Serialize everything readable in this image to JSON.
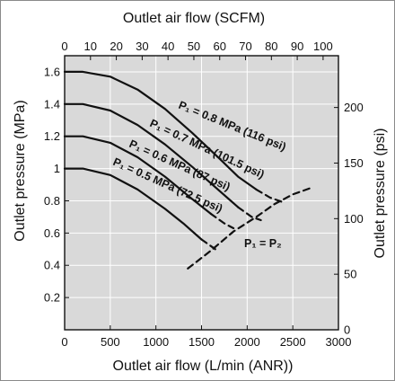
{
  "chart_data": {
    "type": "line",
    "top_axis": {
      "label": "Outlet air flow (SCFM)",
      "ticks": [
        "0",
        "10",
        "20",
        "30",
        "40",
        "50",
        "60",
        "70",
        "80",
        "90",
        "100"
      ],
      "range": [
        0,
        105.94
      ]
    },
    "x_axis": {
      "label": "Outlet air flow (L/min (ANR))",
      "ticks": [
        "0",
        "500",
        "1000",
        "1500",
        "2000",
        "2500",
        "3000"
      ],
      "range": [
        0,
        3000
      ]
    },
    "y_axis": {
      "label": "Outlet pressure (MPa)",
      "ticks": [
        "0.2",
        "0.4",
        "0.6",
        "0.8",
        "1",
        "1.2",
        "1.4",
        "1.6"
      ],
      "range": [
        0,
        1.7
      ]
    },
    "y2_axis": {
      "label": "Outlet pressure (psi)",
      "ticks": [
        "0",
        "50",
        "100",
        "150",
        "200"
      ],
      "range": [
        0,
        246.6
      ]
    },
    "grid": true,
    "series": [
      {
        "name": "P₁ = 0.8 MPa (116 psi)",
        "points": [
          [
            0,
            1.6
          ],
          [
            200,
            1.6
          ],
          [
            500,
            1.57
          ],
          [
            800,
            1.49
          ],
          [
            1100,
            1.37
          ],
          [
            1400,
            1.22
          ],
          [
            1700,
            1.06
          ],
          [
            1900,
            0.95
          ],
          [
            2100,
            0.87
          ]
        ],
        "dashed_points": [
          [
            2100,
            0.87
          ],
          [
            2250,
            0.82
          ],
          [
            2400,
            0.79
          ]
        ]
      },
      {
        "name": "P₁ = 0.7 MPa (101.5 psi)",
        "points": [
          [
            0,
            1.4
          ],
          [
            200,
            1.4
          ],
          [
            500,
            1.36
          ],
          [
            800,
            1.27
          ],
          [
            1100,
            1.15
          ],
          [
            1400,
            1.01
          ],
          [
            1700,
            0.86
          ],
          [
            1900,
            0.76
          ]
        ],
        "dashed_points": [
          [
            1900,
            0.76
          ],
          [
            2050,
            0.7
          ],
          [
            2150,
            0.68
          ]
        ]
      },
      {
        "name": "P₁ = 0.6 MPa (87 psi)",
        "points": [
          [
            0,
            1.2
          ],
          [
            200,
            1.2
          ],
          [
            500,
            1.16
          ],
          [
            800,
            1.07
          ],
          [
            1100,
            0.95
          ],
          [
            1400,
            0.81
          ],
          [
            1600,
            0.72
          ]
        ],
        "dashed_points": [
          [
            1600,
            0.72
          ],
          [
            1750,
            0.66
          ],
          [
            1850,
            0.63
          ]
        ]
      },
      {
        "name": "P₁ = 0.5 MPa (72.5 psi)",
        "points": [
          [
            0,
            1.0
          ],
          [
            200,
            1.0
          ],
          [
            500,
            0.96
          ],
          [
            800,
            0.87
          ],
          [
            1100,
            0.75
          ],
          [
            1300,
            0.66
          ],
          [
            1500,
            0.56
          ]
        ],
        "dashed_points": [
          [
            1500,
            0.56
          ],
          [
            1600,
            0.52
          ],
          [
            1650,
            0.5
          ]
        ]
      },
      {
        "name": "P₁ = P₂",
        "dashed": true,
        "points": [
          [
            1350,
            0.38
          ],
          [
            1600,
            0.49
          ],
          [
            1850,
            0.61
          ],
          [
            2100,
            0.7
          ],
          [
            2300,
            0.78
          ],
          [
            2500,
            0.84
          ],
          [
            2700,
            0.88
          ]
        ]
      }
    ]
  }
}
